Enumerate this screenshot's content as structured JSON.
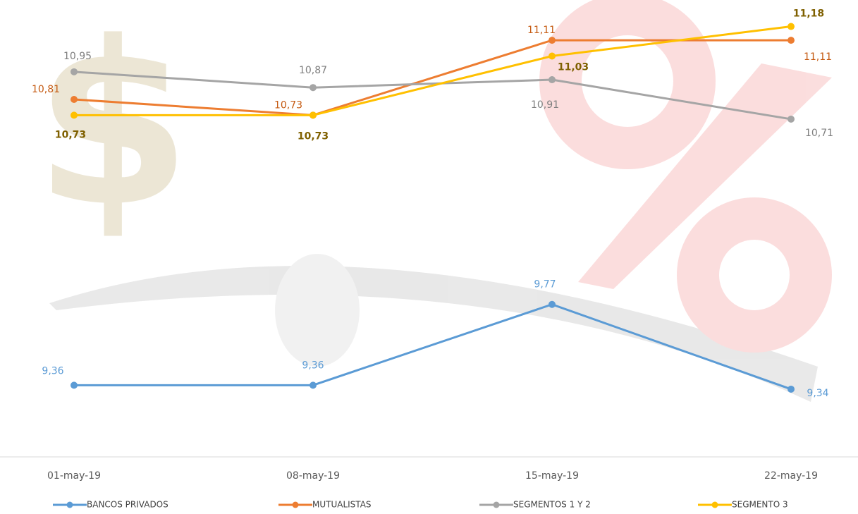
{
  "chart_data": {
    "type": "line",
    "categories": [
      "01-may-19",
      "08-may-19",
      "15-may-19",
      "22-may-19"
    ],
    "ylim": [
      9.0,
      11.3
    ],
    "legend": "bottom",
    "series": [
      {
        "name": "BANCOS PRIVADOS",
        "color": "#5b9bd5",
        "values": [
          9.36,
          9.36,
          9.77,
          9.34
        ],
        "value_labels": [
          "9,36",
          "9,36",
          "9,77",
          "9,34"
        ]
      },
      {
        "name": "MUTUALISTAS",
        "color": "#ed7d31",
        "values": [
          10.81,
          10.73,
          11.11,
          11.11
        ],
        "value_labels": [
          "10,81",
          "10,73",
          "11,11",
          "11,11"
        ]
      },
      {
        "name": "SEGMENTOS 1 Y 2",
        "color": "#a5a5a5",
        "values": [
          10.95,
          10.87,
          10.91,
          10.71
        ],
        "value_labels": [
          "10,95",
          "10,87",
          "10,91",
          "10,71"
        ]
      },
      {
        "name": "SEGMENTO 3",
        "color": "#ffc000",
        "values": [
          10.73,
          10.73,
          11.03,
          11.18
        ],
        "value_labels": [
          "10,73",
          "10,73",
          "11,03",
          "11,18"
        ]
      }
    ]
  }
}
